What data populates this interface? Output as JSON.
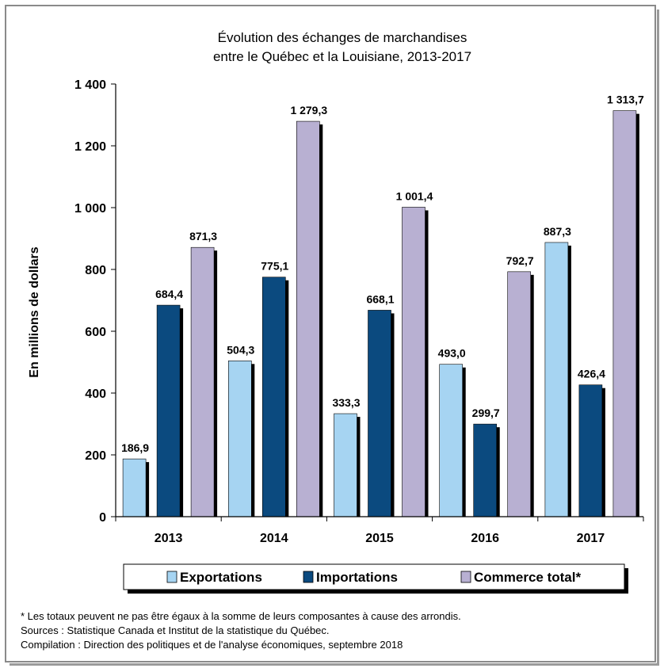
{
  "chart_data": {
    "type": "bar",
    "title_line1": "Évolution des échanges de marchandises",
    "title_line2": "entre le Québec et la Louisiane, 2013-2017",
    "ylabel": "En millions de dollars",
    "ylim": [
      0,
      1400
    ],
    "yticks": [
      0,
      200,
      400,
      600,
      800,
      1000,
      1200,
      1400
    ],
    "ytick_labels": [
      "0",
      "200",
      "400",
      "600",
      "800",
      "1 000",
      "1 200",
      "1 400"
    ],
    "categories": [
      "2013",
      "2014",
      "2015",
      "2016",
      "2017"
    ],
    "series": [
      {
        "name": "Exportations",
        "color": "#a6d4f2",
        "values": [
          186.9,
          504.3,
          333.3,
          493.0,
          887.3
        ],
        "labels": [
          "186,9",
          "504,3",
          "333,3",
          "493,0",
          "887,3"
        ]
      },
      {
        "name": "Importations",
        "color": "#0b4a7f",
        "values": [
          684.4,
          775.1,
          668.1,
          299.7,
          426.4
        ],
        "labels": [
          "684,4",
          "775,1",
          "668,1",
          "299,7",
          "426,4"
        ]
      },
      {
        "name": "Commerce total*",
        "color": "#b8b0d2",
        "values": [
          871.3,
          1279.3,
          1001.4,
          792.7,
          1313.7
        ],
        "labels": [
          "871,3",
          "1 279,3",
          "1 001,4",
          "792,7",
          "1 313,7"
        ]
      }
    ],
    "grid": false,
    "legend_position": "bottom"
  },
  "notes": {
    "line1": "* Les totaux peuvent ne pas être égaux à la somme de leurs composantes à cause des arrondis.",
    "line2": "Sources : Statistique Canada et Institut de la statistique du Québec.",
    "line3": "Compilation : Direction des politiques et de l'analyse économiques, septembre 2018"
  }
}
